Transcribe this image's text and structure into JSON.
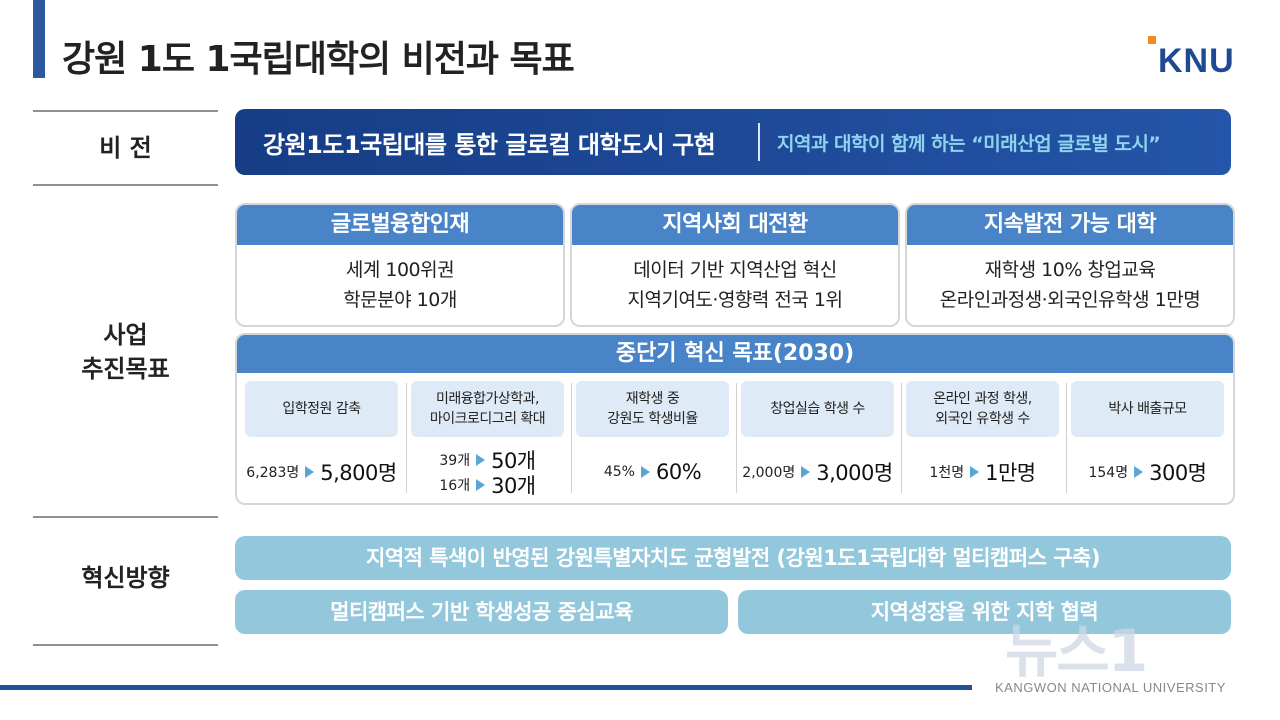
{
  "title": "강원 1도 1국립대학의 비전과 목표",
  "logo": {
    "text": "KNU",
    "accent": "#f28a1e",
    "color": "#1f4a93"
  },
  "rows": {
    "vision_label": "비   전",
    "goals_label_line1": "사업",
    "goals_label_line2": "추진목표",
    "direction_label": "혁신방향"
  },
  "vision": {
    "main": "강원1도1국립대를 통한 글로컬 대학도시 구현",
    "sub": "지역과 대학이 함께 하는 “미래산업 글로벌 도시”"
  },
  "goals": [
    {
      "title": "글로벌융합인재",
      "line1": "세계 100위권",
      "line2": "학문분야 10개"
    },
    {
      "title": "지역사회 대전환",
      "line1": "데이터 기반 지역산업 혁신",
      "line2": "지역기여도·영향력 전국 1위"
    },
    {
      "title": "지속발전 가능 대학",
      "line1": "재학생 10% 창업교육",
      "line2": "온라인과정생·외국인유학생 1만명"
    }
  ],
  "midterm": {
    "title": "중단기 혁신 목표(2030)",
    "metrics": [
      {
        "label1": "입학정원 감축",
        "label2": "",
        "from1": "6,283명",
        "to1": "5,800명",
        "from2": "",
        "to2": ""
      },
      {
        "label1": "미래융합가상학과,",
        "label2": "마이크로디그리 확대",
        "from1": "39개",
        "to1": "50개",
        "from2": "16개",
        "to2": "30개"
      },
      {
        "label1": "재학생 중",
        "label2": "강원도 학생비율",
        "from1": "45%",
        "to1": "60%",
        "from2": "",
        "to2": ""
      },
      {
        "label1": "창업실습 학생 수",
        "label2": "",
        "from1": "2,000명",
        "to1": "3,000명",
        "from2": "",
        "to2": ""
      },
      {
        "label1": "온라인 과정 학생,",
        "label2": "외국인 유학생 수",
        "from1": "1천명",
        "to1": "1만명",
        "from2": "",
        "to2": ""
      },
      {
        "label1": "박사 배출규모",
        "label2": "",
        "from1": "154명",
        "to1": "300명",
        "from2": "",
        "to2": ""
      }
    ]
  },
  "directions": {
    "full": "지역적 특색이 반영된 강원특별자치도 균형발전 (강원1도1국립대학 멀티캠퍼스 구축)",
    "left": "멀티캠퍼스 기반 학생성공 중심교육",
    "right": "지역성장을 위한 지학 협력"
  },
  "footer": {
    "text": "KANGWON NATIONAL UNIVERSITY"
  },
  "watermark": {
    "text": "뉴스1"
  },
  "colors": {
    "primary": "#1f4a93",
    "card_header": "#4a84c8",
    "direction": "#93c7dc",
    "metric_bg": "#deebf6"
  }
}
